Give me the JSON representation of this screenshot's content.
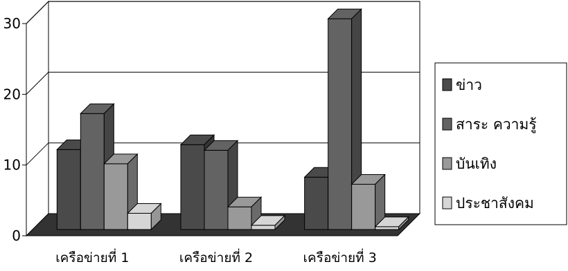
{
  "chart_data": {
    "type": "bar",
    "style": "3d-clustered-column",
    "title": "",
    "xlabel": "",
    "ylabel": "",
    "ylim": [
      0,
      30
    ],
    "yticks": [
      0,
      10,
      20,
      30
    ],
    "grid": true,
    "legend_position": "right",
    "categories": [
      "เครือข่ายที่ 1",
      "เครือข่ายที่ 2",
      "เครือข่ายที่ 3"
    ],
    "series": [
      {
        "name": "ข่าว",
        "color": "#4a4a4a",
        "values": [
          11.3,
          12.0,
          7.4
        ]
      },
      {
        "name": "สาระ ความรู้",
        "color": "#636363",
        "values": [
          16.4,
          11.2,
          29.8
        ]
      },
      {
        "name": "บันเทิง",
        "color": "#999999",
        "values": [
          9.3,
          3.2,
          6.4
        ]
      },
      {
        "name": "ประชาสังคม",
        "color": "#d6d6d6",
        "values": [
          2.3,
          0.6,
          0.4
        ]
      }
    ]
  }
}
